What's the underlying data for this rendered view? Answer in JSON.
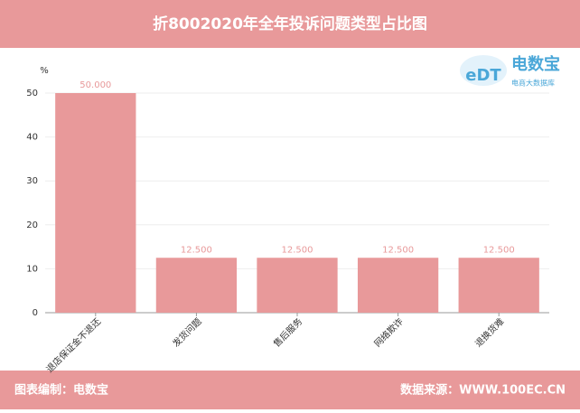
{
  "chart_data": {
    "type": "bar",
    "title": "折8002020年全年投诉问题类型占比图",
    "y_unit": "%",
    "categories": [
      "退店保证金不退还",
      "发货问题",
      "售后服务",
      "网络欺诈",
      "退换货难"
    ],
    "values": [
      50,
      12.5,
      12.5,
      12.5,
      12.5
    ],
    "value_labels": [
      "50.000",
      "12.500",
      "12.500",
      "12.500",
      "12.500"
    ],
    "color": "#e8999a",
    "ylim": [
      0,
      50
    ],
    "yticks": [
      0,
      10,
      20,
      30,
      40,
      50
    ],
    "grid": true,
    "logo": {
      "mark": "eDT",
      "name": "电数宝",
      "tagline": "电商大数据库"
    },
    "footer_left": "图表编制：电数宝",
    "footer_right": "数据来源：WWW.100EC.CN"
  }
}
